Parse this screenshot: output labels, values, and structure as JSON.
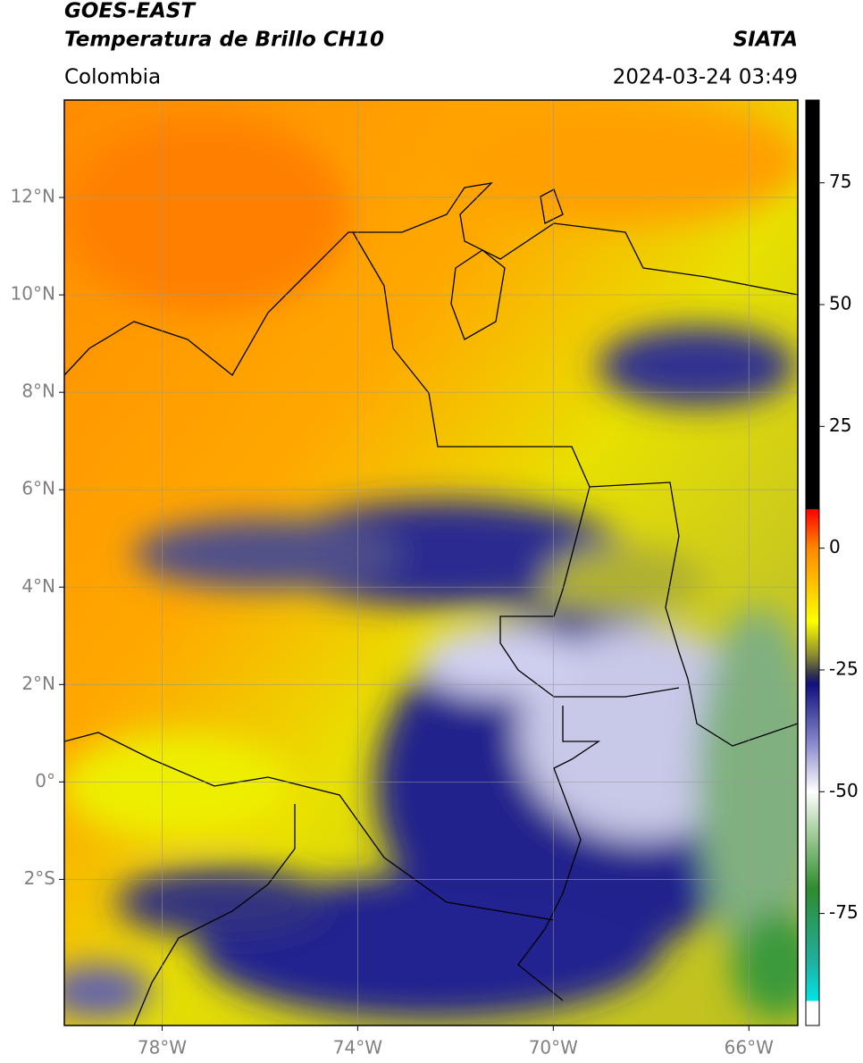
{
  "header": {
    "title_line1": "GOES-EAST",
    "title_line2": "Temperatura de Brillo CH10",
    "source": "SIATA",
    "region": "Colombia",
    "timestamp": "2024-03-24 03:49"
  },
  "map": {
    "lonlim": [
      -80,
      -65
    ],
    "latlim": [
      -5,
      14
    ],
    "lat_ticks": [
      {
        "value": 12,
        "label": "12°N"
      },
      {
        "value": 10,
        "label": "10°N"
      },
      {
        "value": 8,
        "label": "8°N"
      },
      {
        "value": 6,
        "label": "6°N"
      },
      {
        "value": 4,
        "label": "4°N"
      },
      {
        "value": 2,
        "label": "2°N"
      },
      {
        "value": 0,
        "label": "0°"
      },
      {
        "value": -2,
        "label": "2°S"
      }
    ],
    "lon_ticks": [
      {
        "value": -78,
        "label": "78°W"
      },
      {
        "value": -74,
        "label": "74°W"
      },
      {
        "value": -70,
        "label": "70°W"
      },
      {
        "value": -66,
        "label": "66°W"
      }
    ],
    "grid": true
  },
  "colorbar": {
    "lim": [
      -98,
      92
    ],
    "ticks": [
      75,
      50,
      25,
      0,
      -25,
      -50,
      -75
    ],
    "colormap": [
      [
        -98,
        "#ffffff"
      ],
      [
        -93,
        "#ffffff"
      ],
      [
        -93,
        "#00e5e5"
      ],
      [
        -85,
        "#20b0a0"
      ],
      [
        -70,
        "#2e8b2e"
      ],
      [
        -58,
        "#a8d0a0"
      ],
      [
        -50,
        "#ffffff"
      ],
      [
        -40,
        "#8888cc"
      ],
      [
        -28,
        "#101080"
      ],
      [
        -26,
        "#303050"
      ],
      [
        -22,
        "#8a8a30"
      ],
      [
        -15,
        "#ffff00"
      ],
      [
        -5,
        "#ffb000"
      ],
      [
        0,
        "#ff8800"
      ],
      [
        8,
        "#ff0000"
      ],
      [
        8,
        "#000000"
      ],
      [
        92,
        "#000000"
      ]
    ]
  }
}
